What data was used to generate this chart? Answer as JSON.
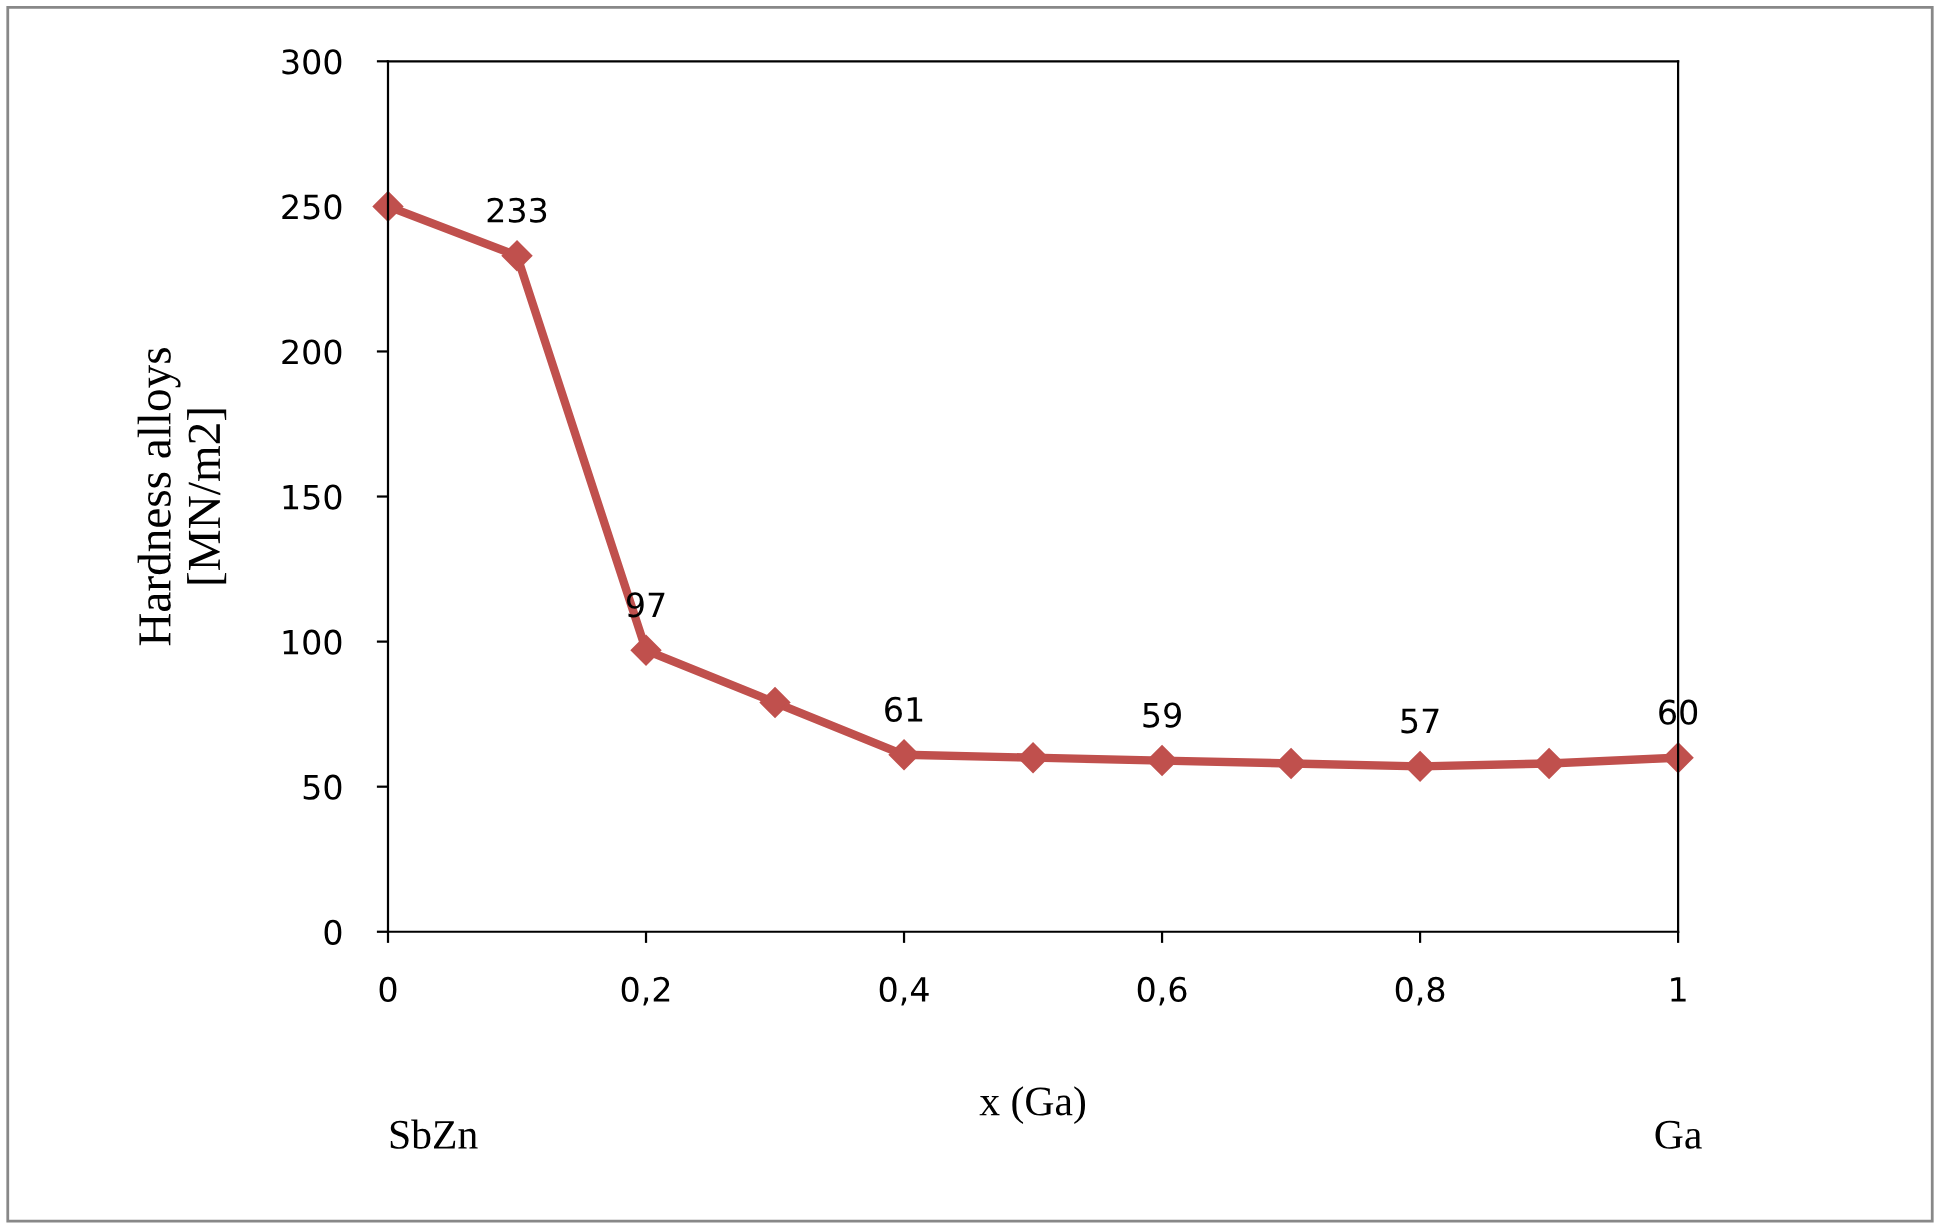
{
  "chart_data": {
    "type": "line",
    "xlabel": "x (Ga)",
    "ylabel": "Hardness alloys\n[MN/m2]",
    "annotations": [
      "SbZn",
      "Ga"
    ],
    "x": [
      0,
      0.1,
      0.2,
      0.3,
      0.4,
      0.5,
      0.6,
      0.7,
      0.8,
      0.9,
      1
    ],
    "series": [
      {
        "color": "#c0504d",
        "values": [
          250,
          233,
          97,
          79,
          61,
          60,
          59,
          58,
          57,
          58,
          60
        ],
        "value_labels": [
          null,
          "233",
          "97",
          null,
          "61",
          null,
          "59",
          null,
          "57",
          null,
          "60"
        ]
      }
    ],
    "xlim": [
      0,
      1
    ],
    "ylim": [
      0,
      300
    ],
    "xticks": [
      0,
      {
        "value": 0.2,
        "label": "0,2"
      },
      {
        "value": 0.4,
        "label": "0,4"
      },
      {
        "value": 0.6,
        "label": "0,6"
      },
      {
        "value": 0.8,
        "label": "0,8"
      },
      1
    ],
    "yticks": [
      0,
      50,
      100,
      150,
      200,
      250,
      300
    ],
    "grid": false,
    "legend": false,
    "marker": "diamond",
    "line_style": "solid"
  }
}
